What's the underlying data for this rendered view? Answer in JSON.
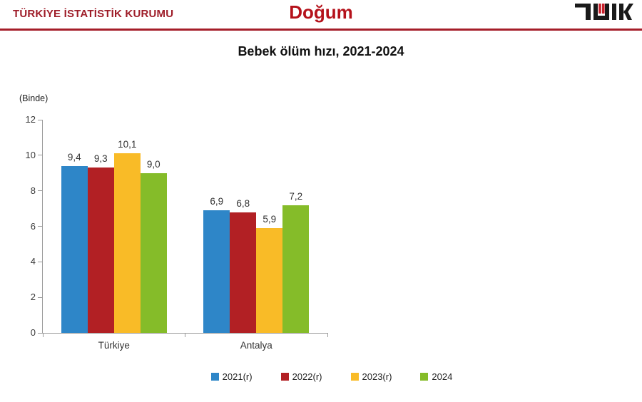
{
  "header": {
    "org_name": "TÜRKİYE İSTATİSTİK KURUMU",
    "section_title": "Doğum",
    "logo_name": "TÜİK",
    "accent_color": "#A51E29"
  },
  "chart_data": {
    "type": "bar",
    "title": "Bebek ölüm hızı, 2021-2024",
    "unit_label": "(Binde)",
    "categories": [
      "Türkiye",
      "Antalya"
    ],
    "series": [
      {
        "name": "2021(r)",
        "color": "#2E86C8",
        "values": [
          9.4,
          6.9
        ],
        "labels": [
          "9,4",
          "6,9"
        ]
      },
      {
        "name": "2022(r)",
        "color": "#B22024",
        "values": [
          9.3,
          6.8
        ],
        "labels": [
          "9,3",
          "6,8"
        ]
      },
      {
        "name": "2023(r)",
        "color": "#F9BB27",
        "values": [
          10.1,
          5.9
        ],
        "labels": [
          "10,1",
          "5,9"
        ]
      },
      {
        "name": "2024",
        "color": "#85BC29",
        "values": [
          9.0,
          7.2
        ],
        "labels": [
          "9,0",
          "7,2"
        ]
      }
    ],
    "ylim": [
      0,
      12
    ],
    "yticks": [
      0,
      2,
      4,
      6,
      8,
      10,
      12
    ],
    "grid": false,
    "legend_position": "bottom"
  }
}
